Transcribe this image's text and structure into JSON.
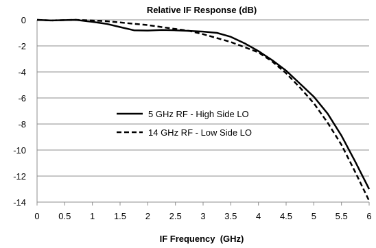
{
  "chart_data": {
    "type": "line",
    "title": "Relative IF Response (dB)",
    "xlabel": "IF Frequency  (GHz)",
    "ylabel": "",
    "xlim": [
      0,
      6
    ],
    "ylim": [
      -14,
      0
    ],
    "x_ticks": [
      "0",
      "0.5",
      "1",
      "1.5",
      "2",
      "2.5",
      "3",
      "3.5",
      "4",
      "4.5",
      "5",
      "5.5",
      "6"
    ],
    "y_ticks": [
      "0",
      "-2",
      "-4",
      "-6",
      "-8",
      "-10",
      "-12",
      "-14"
    ],
    "grid": "horizontal",
    "legend_position": "center-left",
    "series": [
      {
        "name": "5 GHz RF - High Side LO",
        "style": "solid",
        "color": "#000000",
        "x": [
          0,
          0.25,
          0.5,
          0.7,
          1.0,
          1.25,
          1.5,
          1.75,
          2.0,
          2.25,
          2.5,
          2.75,
          3.0,
          3.25,
          3.5,
          3.75,
          4.0,
          4.25,
          4.5,
          4.75,
          5.0,
          5.25,
          5.5,
          5.75,
          6.0
        ],
        "y": [
          0,
          -0.05,
          -0.02,
          0,
          -0.15,
          -0.3,
          -0.55,
          -0.8,
          -0.82,
          -0.78,
          -0.8,
          -0.85,
          -0.9,
          -1.0,
          -1.3,
          -1.8,
          -2.4,
          -3.1,
          -3.9,
          -4.9,
          -5.9,
          -7.2,
          -8.9,
          -10.9,
          -13.0
        ]
      },
      {
        "name": "14 GHz RF - Low Side LO",
        "style": "dashed",
        "color": "#000000",
        "x": [
          0,
          0.25,
          0.5,
          0.7,
          1.0,
          1.25,
          1.5,
          1.75,
          2.0,
          2.25,
          2.5,
          2.75,
          3.0,
          3.25,
          3.5,
          3.75,
          4.0,
          4.25,
          4.5,
          4.75,
          5.0,
          5.25,
          5.5,
          5.75,
          6.0
        ],
        "y": [
          0,
          -0.05,
          -0.02,
          0,
          -0.05,
          -0.1,
          -0.2,
          -0.3,
          -0.4,
          -0.55,
          -0.7,
          -0.85,
          -1.1,
          -1.4,
          -1.7,
          -2.1,
          -2.5,
          -3.2,
          -4.1,
          -5.2,
          -6.4,
          -7.9,
          -9.6,
          -11.7,
          -13.9
        ]
      }
    ]
  }
}
